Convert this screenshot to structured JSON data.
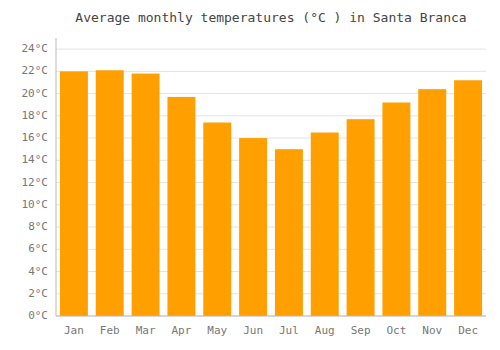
{
  "chart_data": {
    "type": "bar",
    "title": "Average monthly temperatures (°C ) in Santa Branca",
    "categories": [
      "Jan",
      "Feb",
      "Mar",
      "Apr",
      "May",
      "Jun",
      "Jul",
      "Aug",
      "Sep",
      "Oct",
      "Nov",
      "Dec"
    ],
    "values": [
      22.0,
      22.1,
      21.8,
      19.7,
      17.4,
      16.0,
      15.0,
      16.5,
      17.7,
      19.2,
      20.4,
      21.2
    ],
    "color": "#FFA000",
    "ylim": [
      0,
      25
    ],
    "yticks": [
      {
        "value": 0,
        "label": "0°C"
      },
      {
        "value": 2,
        "label": "2°C"
      },
      {
        "value": 4,
        "label": "4°C"
      },
      {
        "value": 6,
        "label": "6°C"
      },
      {
        "value": 8,
        "label": "8°C"
      },
      {
        "value": 10,
        "label": "10°C"
      },
      {
        "value": 12,
        "label": "12°C"
      },
      {
        "value": 14,
        "label": "14°C"
      },
      {
        "value": 16,
        "label": "16°C"
      },
      {
        "value": 18,
        "label": "18°C"
      },
      {
        "value": 20,
        "label": "20°C"
      },
      {
        "value": 22,
        "label": "22°C"
      },
      {
        "value": 24,
        "label": "24°C"
      }
    ],
    "grid": true
  }
}
